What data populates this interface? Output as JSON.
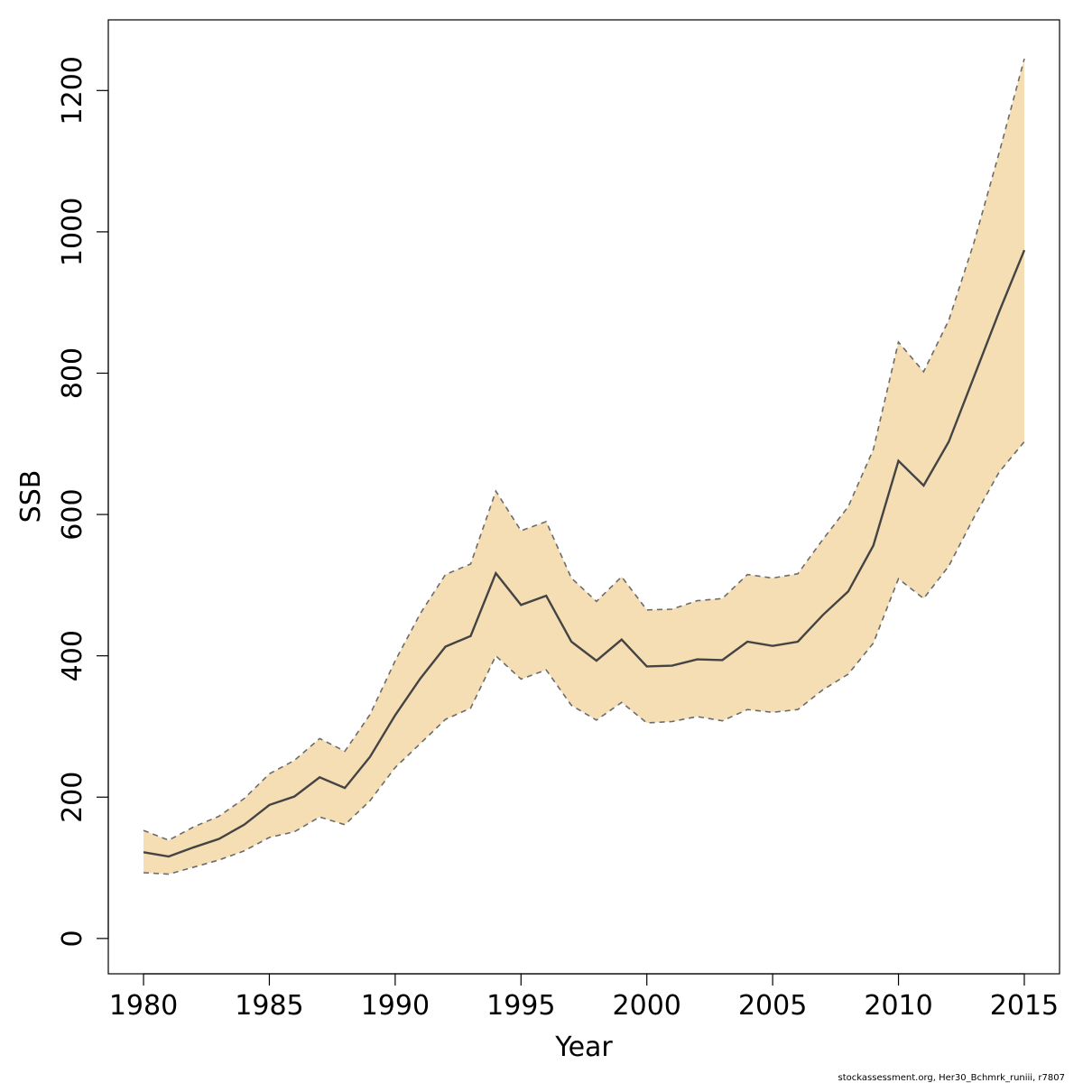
{
  "chart_data": {
    "type": "area",
    "xlabel": "Year",
    "ylabel": "SSB",
    "xlim": [
      1978.6,
      2016.4
    ],
    "ylim": [
      -50,
      1300
    ],
    "x_ticks": [
      1980,
      1985,
      1990,
      1995,
      2000,
      2005,
      2010,
      2015
    ],
    "y_ticks": [
      0,
      200,
      400,
      600,
      800,
      1000,
      1200
    ],
    "grid": false,
    "legend": "none",
    "colors": {
      "band": "#F5DEB3",
      "line": "#444444",
      "bounds": "#6b6b6b"
    },
    "x": [
      1980,
      1981,
      1982,
      1983,
      1984,
      1985,
      1986,
      1987,
      1988,
      1989,
      1990,
      1991,
      1992,
      1993,
      1994,
      1995,
      1996,
      1997,
      1998,
      1999,
      2000,
      2001,
      2002,
      2003,
      2004,
      2005,
      2006,
      2007,
      2008,
      2009,
      2010,
      2011,
      2012,
      2013,
      2014,
      2015
    ],
    "series": [
      {
        "values": [
          122,
          116,
          129,
          141,
          161,
          189,
          201,
          228,
          213,
          257,
          316,
          368,
          413,
          428,
          517,
          472,
          485,
          420,
          393,
          423,
          385,
          386,
          395,
          394,
          420,
          414,
          420,
          458,
          491,
          556,
          676,
          641,
          703,
          795,
          887,
          974
        ]
      },
      {
        "values": [
          153,
          139,
          158,
          173,
          198,
          233,
          252,
          283,
          265,
          317,
          393,
          460,
          515,
          530,
          633,
          577,
          590,
          510,
          477,
          512,
          465,
          466,
          478,
          481,
          515,
          510,
          516,
          565,
          611,
          692,
          844,
          802,
          875,
          985,
          1112,
          1245
        ]
      },
      {
        "values": [
          93,
          91,
          101,
          111,
          124,
          143,
          151,
          172,
          161,
          195,
          242,
          276,
          310,
          326,
          400,
          367,
          380,
          330,
          309,
          334,
          305,
          307,
          314,
          308,
          324,
          320,
          324,
          352,
          374,
          418,
          509,
          481,
          527,
          596,
          660,
          703
        ]
      }
    ]
  },
  "footer": "stockassessment.org, Her30_Bchmrk_runiii, r7807"
}
